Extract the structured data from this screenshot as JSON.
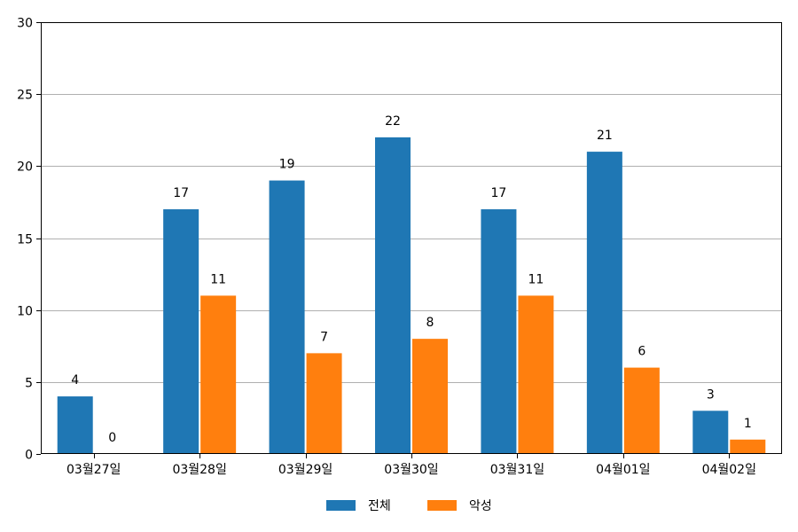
{
  "chart_data": {
    "type": "bar",
    "categories": [
      "03월27일",
      "03월28일",
      "03월29일",
      "03월30일",
      "03월31일",
      "04월01일",
      "04월02일"
    ],
    "series": [
      {
        "name": "전체",
        "values": [
          4,
          17,
          19,
          22,
          17,
          21,
          3
        ],
        "color": "#1f77b4"
      },
      {
        "name": "악성",
        "values": [
          0,
          11,
          7,
          8,
          11,
          6,
          1
        ],
        "color": "#ff7f0e"
      }
    ],
    "yticks": [
      0,
      5,
      10,
      15,
      20,
      25,
      30
    ],
    "ylim": [
      0,
      30
    ],
    "grid": "horizontal",
    "legend_position": "bottom-center"
  }
}
